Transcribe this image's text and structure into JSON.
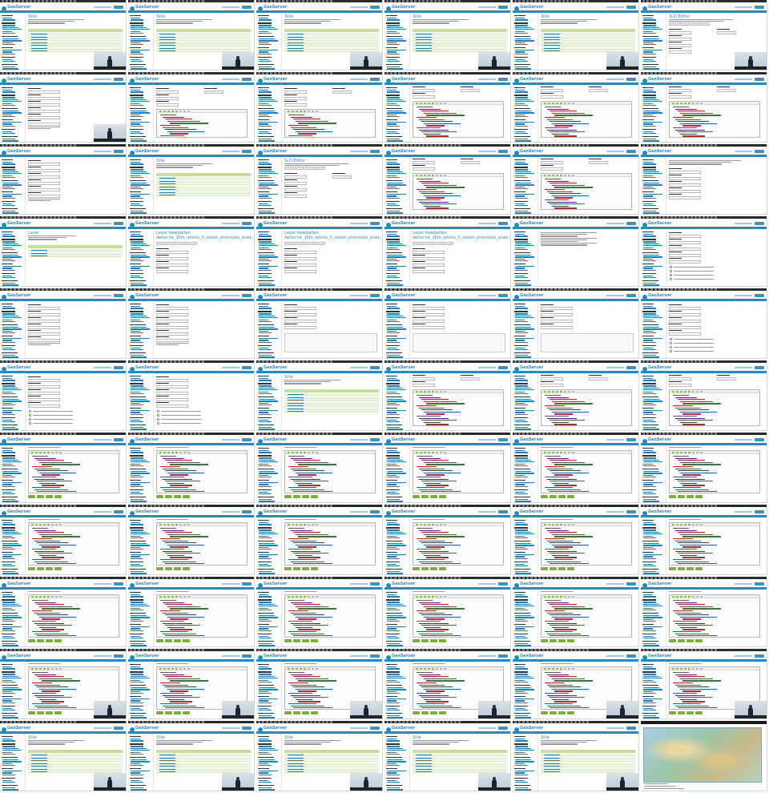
{
  "app": {
    "logo_text": "GeoServer",
    "page_titles": {
      "styles": "Stile",
      "sld_editor": "SLD Editor",
      "layers": "Layer",
      "edit_layer": "Layer bearbeiten",
      "layer_path": "demo:ne_10m_admin_0_states_provinces_scale_rank"
    },
    "header_button": "Abmelden"
  },
  "colors": {
    "brand_blue": "#1d8dc8",
    "list_header_green": "#c6e09a",
    "button_green": "#7fae3e",
    "sidebar_link": "#1f7fbf"
  },
  "tiles": [
    "styles",
    "styles",
    "styles",
    "styles",
    "styles",
    "sld_editor",
    "form",
    "form_editor",
    "form_editor",
    "editor",
    "editor",
    "editor",
    "form",
    "styles",
    "sld_editor",
    "editor",
    "editor",
    "form_text",
    "layers",
    "edit_layer",
    "edit_layer",
    "edit_layer",
    "plain",
    "form_right",
    "form",
    "form",
    "form_table",
    "form_table",
    "form_table",
    "form_right",
    "form_right",
    "form_right",
    "styles",
    "editor",
    "editor",
    "editor",
    "editor_btns",
    "editor_btns",
    "editor_btns",
    "editor_btns",
    "editor_btns",
    "editor_btns",
    "editor_btns",
    "editor_btns",
    "editor_btns",
    "editor_btns",
    "editor_btns",
    "editor_btns",
    "editor_btns",
    "editor_btns",
    "editor_btns",
    "editor_btns",
    "editor_btns",
    "editor_btns",
    "editor_btns",
    "editor_btns",
    "editor_btns",
    "editor_btns",
    "editor_btns",
    "editor_btns",
    "styles",
    "styles",
    "styles",
    "styles",
    "styles",
    "map"
  ],
  "video_overlay_tiles": [
    0,
    1,
    2,
    3,
    4,
    5,
    6,
    54,
    55,
    56,
    57,
    58,
    59,
    60,
    61,
    62,
    63,
    64
  ],
  "map_tile": 65,
  "code_colors": [
    "#2e7d32",
    "#6a1b9a",
    "#c62828",
    "#1565c0",
    "#2e7d32",
    "#c62828",
    "#2e7d32",
    "#6a1b9a",
    "#1565c0",
    "#c62828",
    "#2e7d32",
    "#6a1b9a"
  ]
}
